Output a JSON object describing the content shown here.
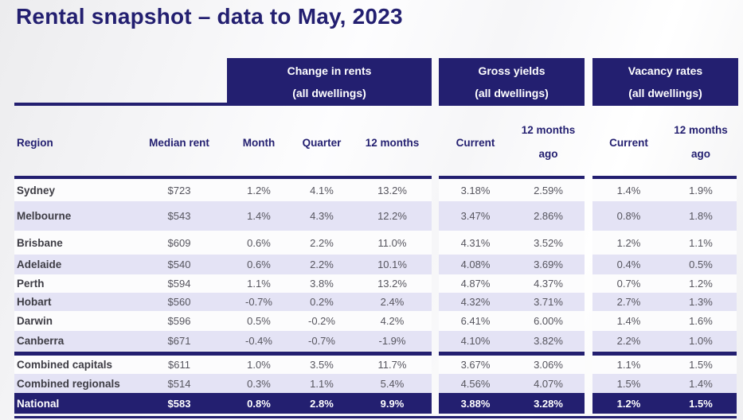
{
  "title": "Rental snapshot – data to May, 2023",
  "colors": {
    "navy": "#231F70",
    "lavender_row": "#E4E3F5",
    "white_row": "#FCFCFD",
    "value_text": "#56555E",
    "region_text": "#3E3D45",
    "header_text_on_navy": "#FFFFFF"
  },
  "group_headers": {
    "change_in_rents": {
      "line1": "Change in rents",
      "line2": "(all dwellings)"
    },
    "gross_yields": {
      "line1": "Gross yields",
      "line2": "(all dwellings)"
    },
    "vacancy_rates": {
      "line1": "Vacancy rates",
      "line2": "(all dwellings)"
    }
  },
  "columns": {
    "region": "Region",
    "median_rent": "Median rent",
    "month": "Month",
    "quarter": "Quarter",
    "twelve_months": "12 months",
    "yield_current": "Current",
    "yield_12mo_ago": "12 months ago",
    "vacancy_current": "Current",
    "vacancy_12mo_ago": "12 months ago"
  },
  "chart_data": {
    "type": "table",
    "title": "Rental snapshot – data to May, 2023",
    "column_groups": [
      "Change in rents (all dwellings)",
      "Gross yields (all dwellings)",
      "Vacancy rates (all dwellings)"
    ],
    "columns": [
      "Region",
      "Median rent",
      "Month",
      "Quarter",
      "12 months",
      "Gross yield Current",
      "Gross yield 12 months ago",
      "Vacancy Current",
      "Vacancy 12 months ago"
    ],
    "rows": [
      [
        "Sydney",
        "$723",
        "1.2%",
        "4.1%",
        "13.2%",
        "3.18%",
        "2.59%",
        "1.4%",
        "1.9%"
      ],
      [
        "Melbourne",
        "$543",
        "1.4%",
        "4.3%",
        "12.2%",
        "3.47%",
        "2.86%",
        "0.8%",
        "1.8%"
      ],
      [
        "Brisbane",
        "$609",
        "0.6%",
        "2.2%",
        "11.0%",
        "4.31%",
        "3.52%",
        "1.2%",
        "1.1%"
      ],
      [
        "Adelaide",
        "$540",
        "0.6%",
        "2.2%",
        "10.1%",
        "4.08%",
        "3.69%",
        "0.4%",
        "0.5%"
      ],
      [
        "Perth",
        "$594",
        "1.1%",
        "3.8%",
        "13.2%",
        "4.87%",
        "4.37%",
        "0.7%",
        "1.2%"
      ],
      [
        "Hobart",
        "$560",
        "-0.7%",
        "0.2%",
        "2.4%",
        "4.32%",
        "3.71%",
        "2.7%",
        "1.3%"
      ],
      [
        "Darwin",
        "$596",
        "0.5%",
        "-0.2%",
        "4.2%",
        "6.41%",
        "6.00%",
        "1.4%",
        "1.6%"
      ],
      [
        "Canberra",
        "$671",
        "-0.4%",
        "-0.7%",
        "-1.9%",
        "4.10%",
        "3.82%",
        "2.2%",
        "1.0%"
      ],
      [
        "Combined capitals",
        "$611",
        "1.0%",
        "3.5%",
        "11.7%",
        "3.67%",
        "3.06%",
        "1.1%",
        "1.5%"
      ],
      [
        "Combined regionals",
        "$514",
        "0.3%",
        "1.1%",
        "5.4%",
        "4.56%",
        "4.07%",
        "1.5%",
        "1.4%"
      ],
      [
        "National",
        "$583",
        "0.8%",
        "2.8%",
        "9.9%",
        "3.88%",
        "3.28%",
        "1.2%",
        "1.5%"
      ]
    ]
  }
}
